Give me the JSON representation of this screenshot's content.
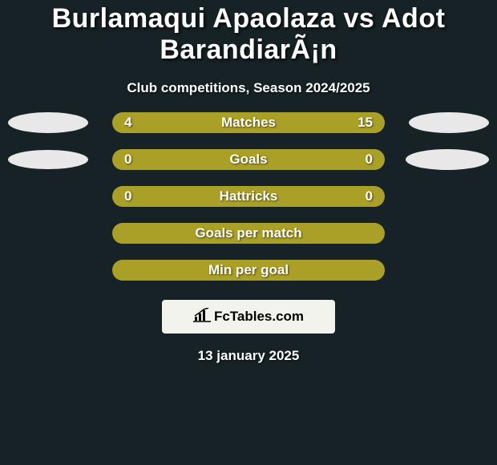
{
  "background_color": "#162225",
  "title": "Burlamaqui Apaolaza vs Adot BarandiarÃ¡n",
  "title_color": "#ffffff",
  "title_fontsize": 34,
  "subtitle": "Club competitions, Season 2024/2025",
  "subtitle_color": "#ffffff",
  "subtitle_fontsize": 17,
  "bar_track_width": 340,
  "bar_track_height": 26,
  "label_fontsize": 17,
  "team_colors": {
    "left": "#aaa027",
    "right": "#aaa027"
  },
  "ellipse_color": "#e8e8e8",
  "stats": [
    {
      "label": "Matches",
      "left_value": "4",
      "right_value": "15",
      "left_num": 4,
      "right_num": 15,
      "left_pct": 21,
      "right_pct": 79,
      "show_left_ellipse": true,
      "show_right_ellipse": true,
      "l_ellipse_w": 100,
      "l_ellipse_h": 26,
      "r_ellipse_w": 100,
      "r_ellipse_h": 26
    },
    {
      "label": "Goals",
      "left_value": "0",
      "right_value": "0",
      "left_num": 0,
      "right_num": 0,
      "left_pct": 50,
      "right_pct": 50,
      "show_left_ellipse": true,
      "show_right_ellipse": true,
      "l_ellipse_w": 100,
      "l_ellipse_h": 24,
      "r_ellipse_w": 104,
      "r_ellipse_h": 26
    },
    {
      "label": "Hattricks",
      "left_value": "0",
      "right_value": "0",
      "left_num": 0,
      "right_num": 0,
      "left_pct": 50,
      "right_pct": 50,
      "show_left_ellipse": false,
      "show_right_ellipse": false
    },
    {
      "label": "Goals per match",
      "left_value": "",
      "right_value": "",
      "left_num": 0,
      "right_num": 0,
      "left_pct": 50,
      "right_pct": 50,
      "show_left_ellipse": false,
      "show_right_ellipse": false
    },
    {
      "label": "Min per goal",
      "left_value": "",
      "right_value": "",
      "left_num": 0,
      "right_num": 0,
      "left_pct": 50,
      "right_pct": 50,
      "show_left_ellipse": false,
      "show_right_ellipse": false
    }
  ],
  "logo": {
    "box_bg": "#f3f3ed",
    "text": "FcTables.com",
    "text_color": "#000000",
    "icon_color": "#000000"
  },
  "date": "13 january 2025",
  "date_color": "#ffffff"
}
